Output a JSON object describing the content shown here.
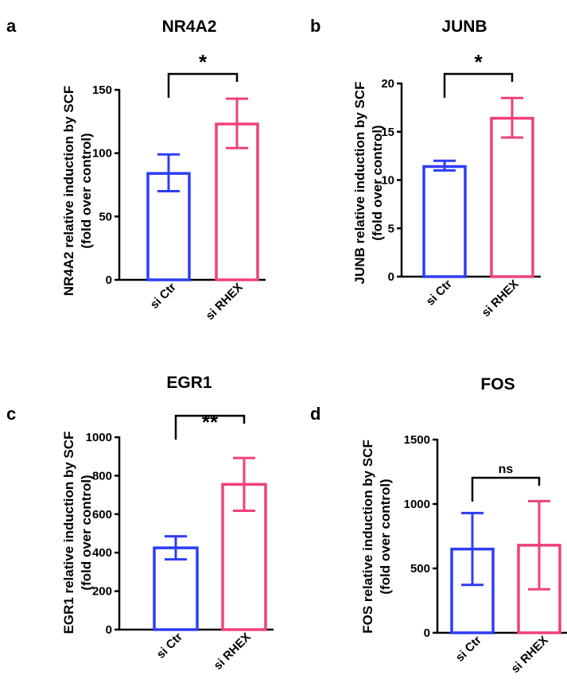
{
  "chart_data": [
    {
      "panel": "a",
      "type": "bar",
      "title": "NR4A2",
      "ylabel_lines": [
        "NR4A2 relative induction by SCF",
        "(fold over control)"
      ],
      "categories": [
        "si Ctr",
        "si RHEX"
      ],
      "values": [
        84,
        123
      ],
      "errors": [
        [
          70,
          99
        ],
        [
          104,
          143
        ]
      ],
      "ylim": [
        0,
        150
      ],
      "yticks": [
        "0",
        "50",
        "100",
        "150"
      ],
      "significance": "*",
      "colors": [
        "#2d3df5",
        "#f0407a"
      ]
    },
    {
      "panel": "b",
      "type": "bar",
      "title": "JUNB",
      "ylabel_lines": [
        "JUNB relative induction by SCF",
        "(fold over control)"
      ],
      "categories": [
        "si Ctr",
        "si RHEX"
      ],
      "values": [
        11.4,
        16.4
      ],
      "errors": [
        [
          11.0,
          12.0
        ],
        [
          14.4,
          18.5
        ]
      ],
      "ylim": [
        0,
        20
      ],
      "yticks": [
        "0",
        "5",
        "10",
        "15",
        "20"
      ],
      "significance": "*",
      "colors": [
        "#2d3df5",
        "#f0407a"
      ]
    },
    {
      "panel": "c",
      "type": "bar",
      "title": "EGR1",
      "ylabel_lines": [
        "EGR1 relative induction by SCF",
        "(fold over control)"
      ],
      "categories": [
        "si Ctr",
        "si RHEX"
      ],
      "values": [
        425,
        755
      ],
      "errors": [
        [
          365,
          485
        ],
        [
          618,
          892
        ]
      ],
      "ylim": [
        0,
        1000
      ],
      "yticks": [
        "0",
        "200",
        "400",
        "600",
        "800",
        "1000"
      ],
      "significance": "**",
      "colors": [
        "#2d3df5",
        "#f0407a"
      ]
    },
    {
      "panel": "d",
      "type": "bar",
      "title": "FOS",
      "ylabel_lines": [
        "FOS relative induction by SCF",
        "(fold over control)"
      ],
      "categories": [
        "si Ctr",
        "si RHEX"
      ],
      "values": [
        650,
        680
      ],
      "errors": [
        [
          372,
          930
        ],
        [
          338,
          1022
        ]
      ],
      "ylim": [
        0,
        1500
      ],
      "yticks": [
        "0",
        "500",
        "1000",
        "1500"
      ],
      "significance": "ns",
      "colors": [
        "#2d3df5",
        "#f0407a"
      ]
    }
  ]
}
